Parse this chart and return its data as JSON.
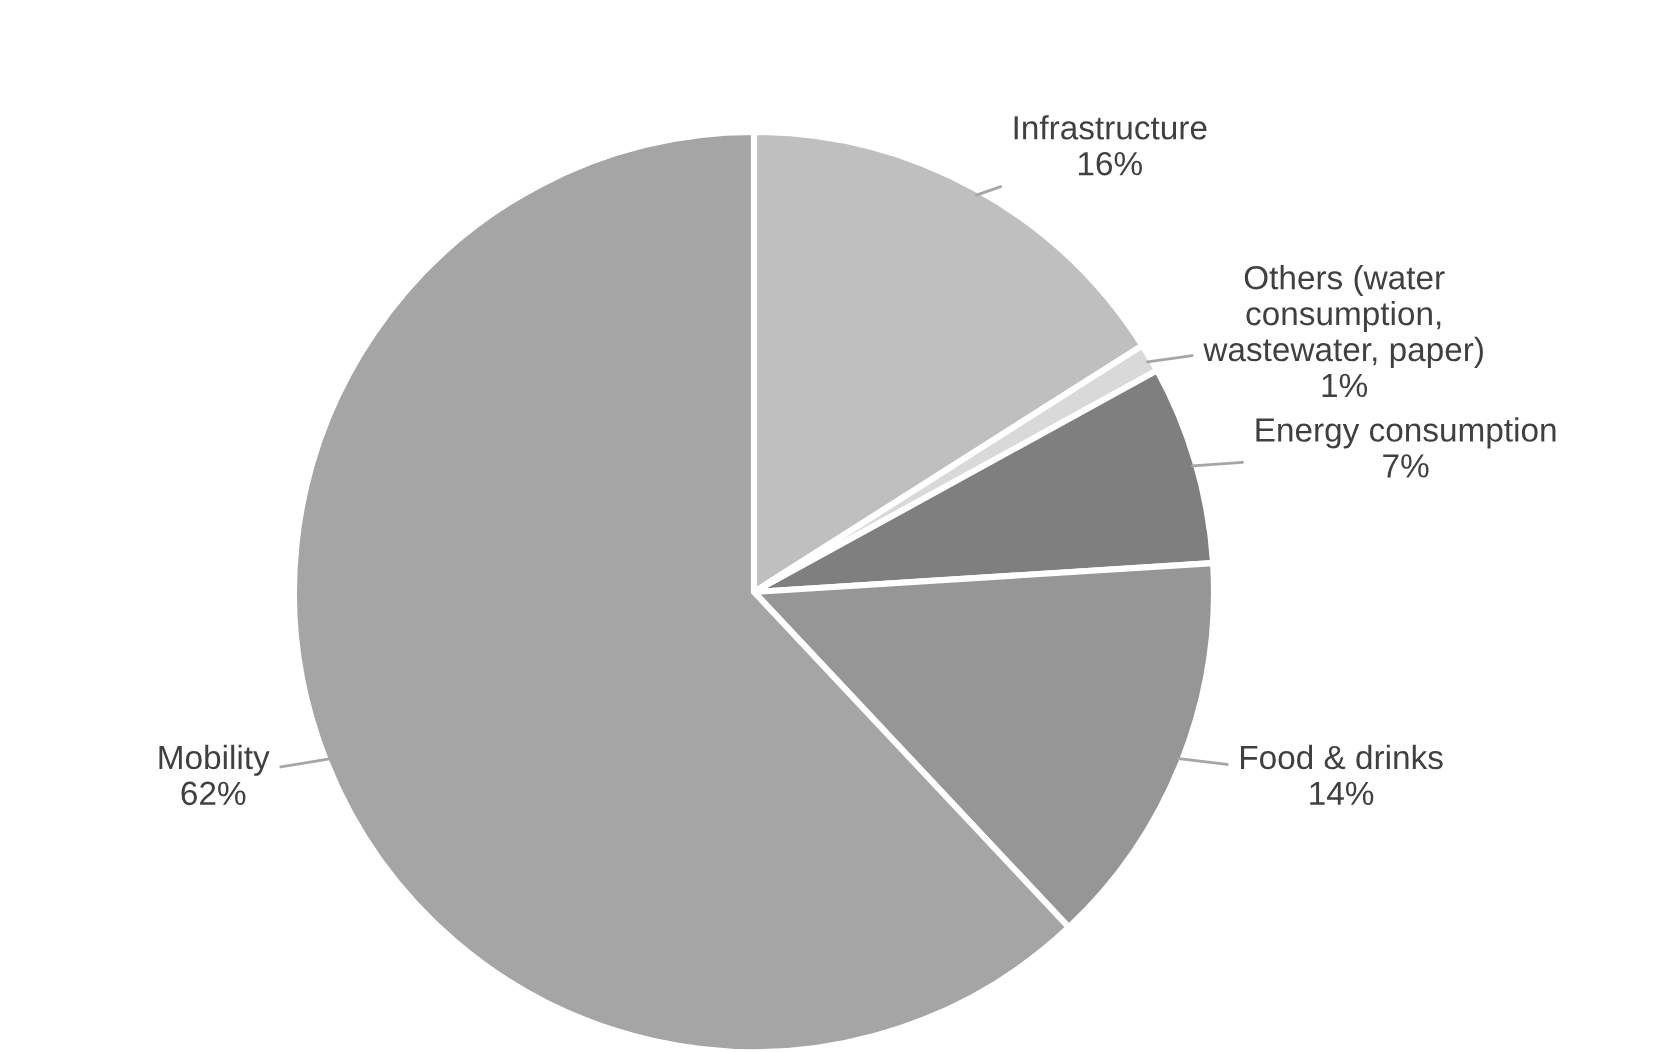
{
  "chart_data": {
    "type": "pie",
    "categories": [
      "Infrastructure",
      "Others (water\nconsumption,\nwastewater, paper)",
      "Energy consumption",
      "Food & drinks",
      "Mobility"
    ],
    "values": [
      16,
      1,
      7,
      14,
      62
    ],
    "value_labels": [
      "16%",
      "1%",
      "7%",
      "14%",
      "62%"
    ],
    "colors": [
      "#bfbfbf",
      "#d9d9d9",
      "#7f7f7f",
      "#969696",
      "#a5a5a5"
    ],
    "legend": false
  }
}
